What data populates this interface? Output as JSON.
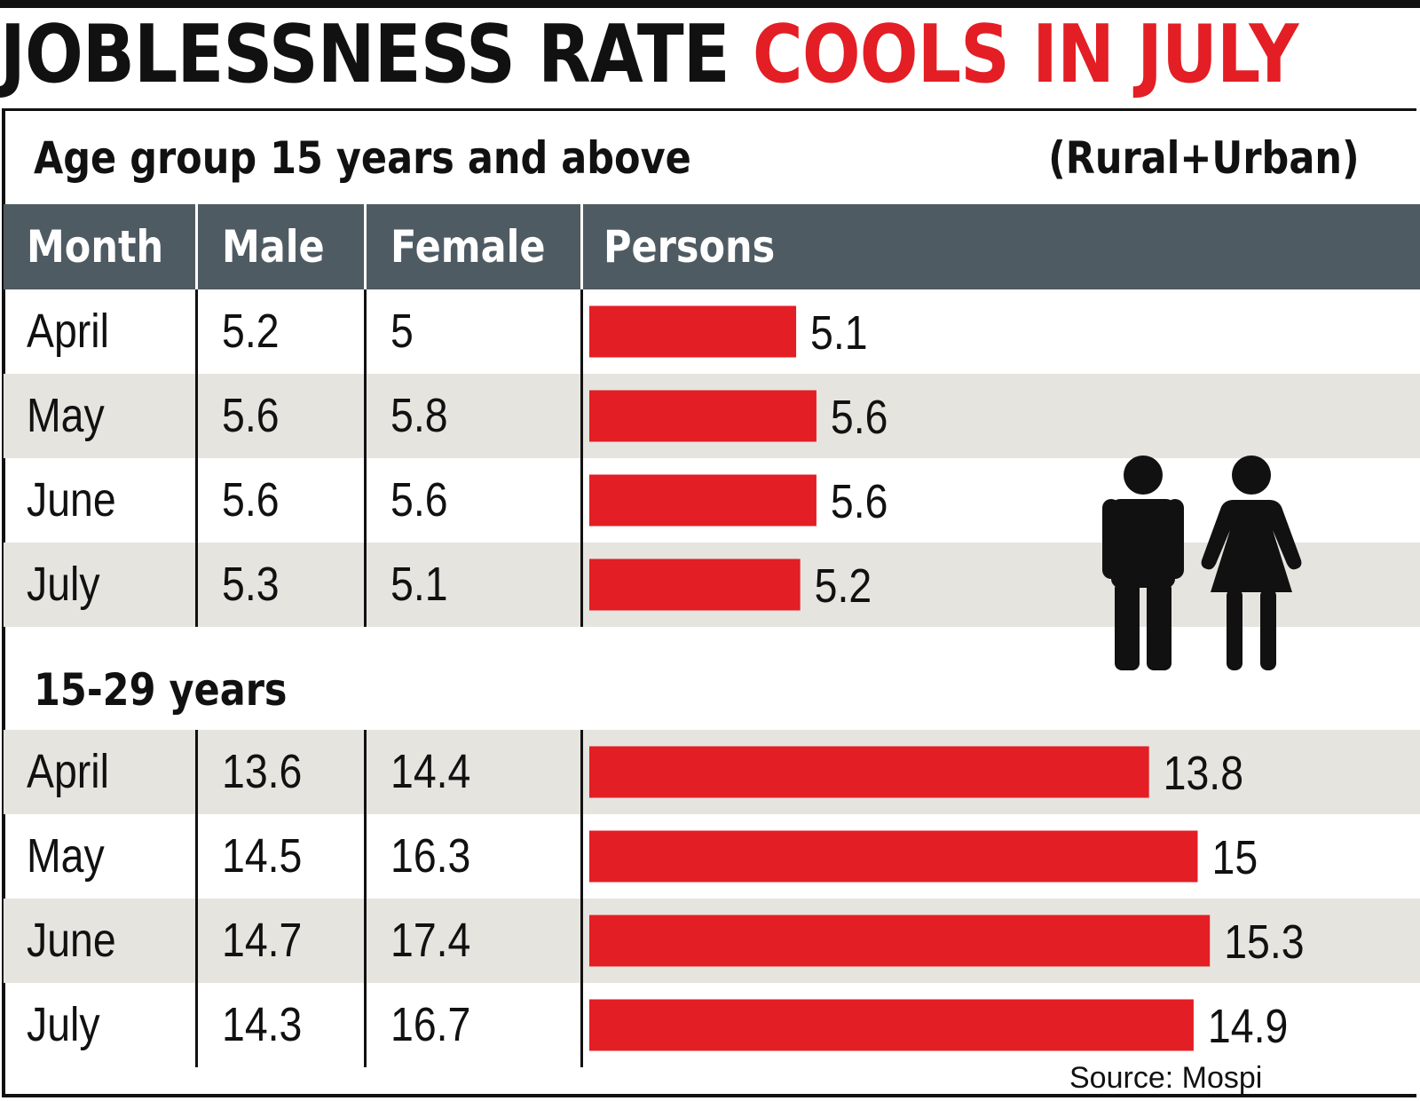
{
  "headline": {
    "part1": "JOBLESSNESS RATE",
    "part2": "COOLS IN JULY"
  },
  "colors": {
    "accent": "#e31e24",
    "header_bg": "#4f5b62",
    "shade": "#e6e4df",
    "text": "#111111"
  },
  "icons": [
    "man-icon",
    "woman-icon"
  ],
  "table_header": {
    "month": "Month",
    "male": "Male",
    "female": "Female",
    "persons": "Persons"
  },
  "source": "Source: Mospi",
  "chart_data": [
    {
      "type": "table",
      "title": "Age group 15 years and above",
      "note": "(Rural+Urban)",
      "columns": [
        "Month",
        "Male",
        "Female",
        "Persons"
      ],
      "rows": [
        {
          "month": "April",
          "male": "5.2",
          "female": "5",
          "persons": "5.1"
        },
        {
          "month": "May",
          "male": "5.6",
          "female": "5.8",
          "persons": "5.6"
        },
        {
          "month": "June",
          "male": "5.6",
          "female": "5.6",
          "persons": "5.6"
        },
        {
          "month": "July",
          "male": "5.3",
          "female": "5.1",
          "persons": "5.2"
        }
      ],
      "bar_series": {
        "name": "Persons",
        "values": [
          5.1,
          5.6,
          5.6,
          5.2
        ]
      }
    },
    {
      "type": "table",
      "title": "15-29 years",
      "columns": [
        "Month",
        "Male",
        "Female",
        "Persons"
      ],
      "rows": [
        {
          "month": "April",
          "male": "13.6",
          "female": "14.4",
          "persons": "13.8"
        },
        {
          "month": "May",
          "male": "14.5",
          "female": "16.3",
          "persons": "15"
        },
        {
          "month": "June",
          "male": "14.7",
          "female": "17.4",
          "persons": "15.3"
        },
        {
          "month": "July",
          "male": "14.3",
          "female": "16.7",
          "persons": "14.9"
        }
      ],
      "bar_series": {
        "name": "Persons",
        "values": [
          13.8,
          15,
          15.3,
          14.9
        ]
      }
    }
  ]
}
